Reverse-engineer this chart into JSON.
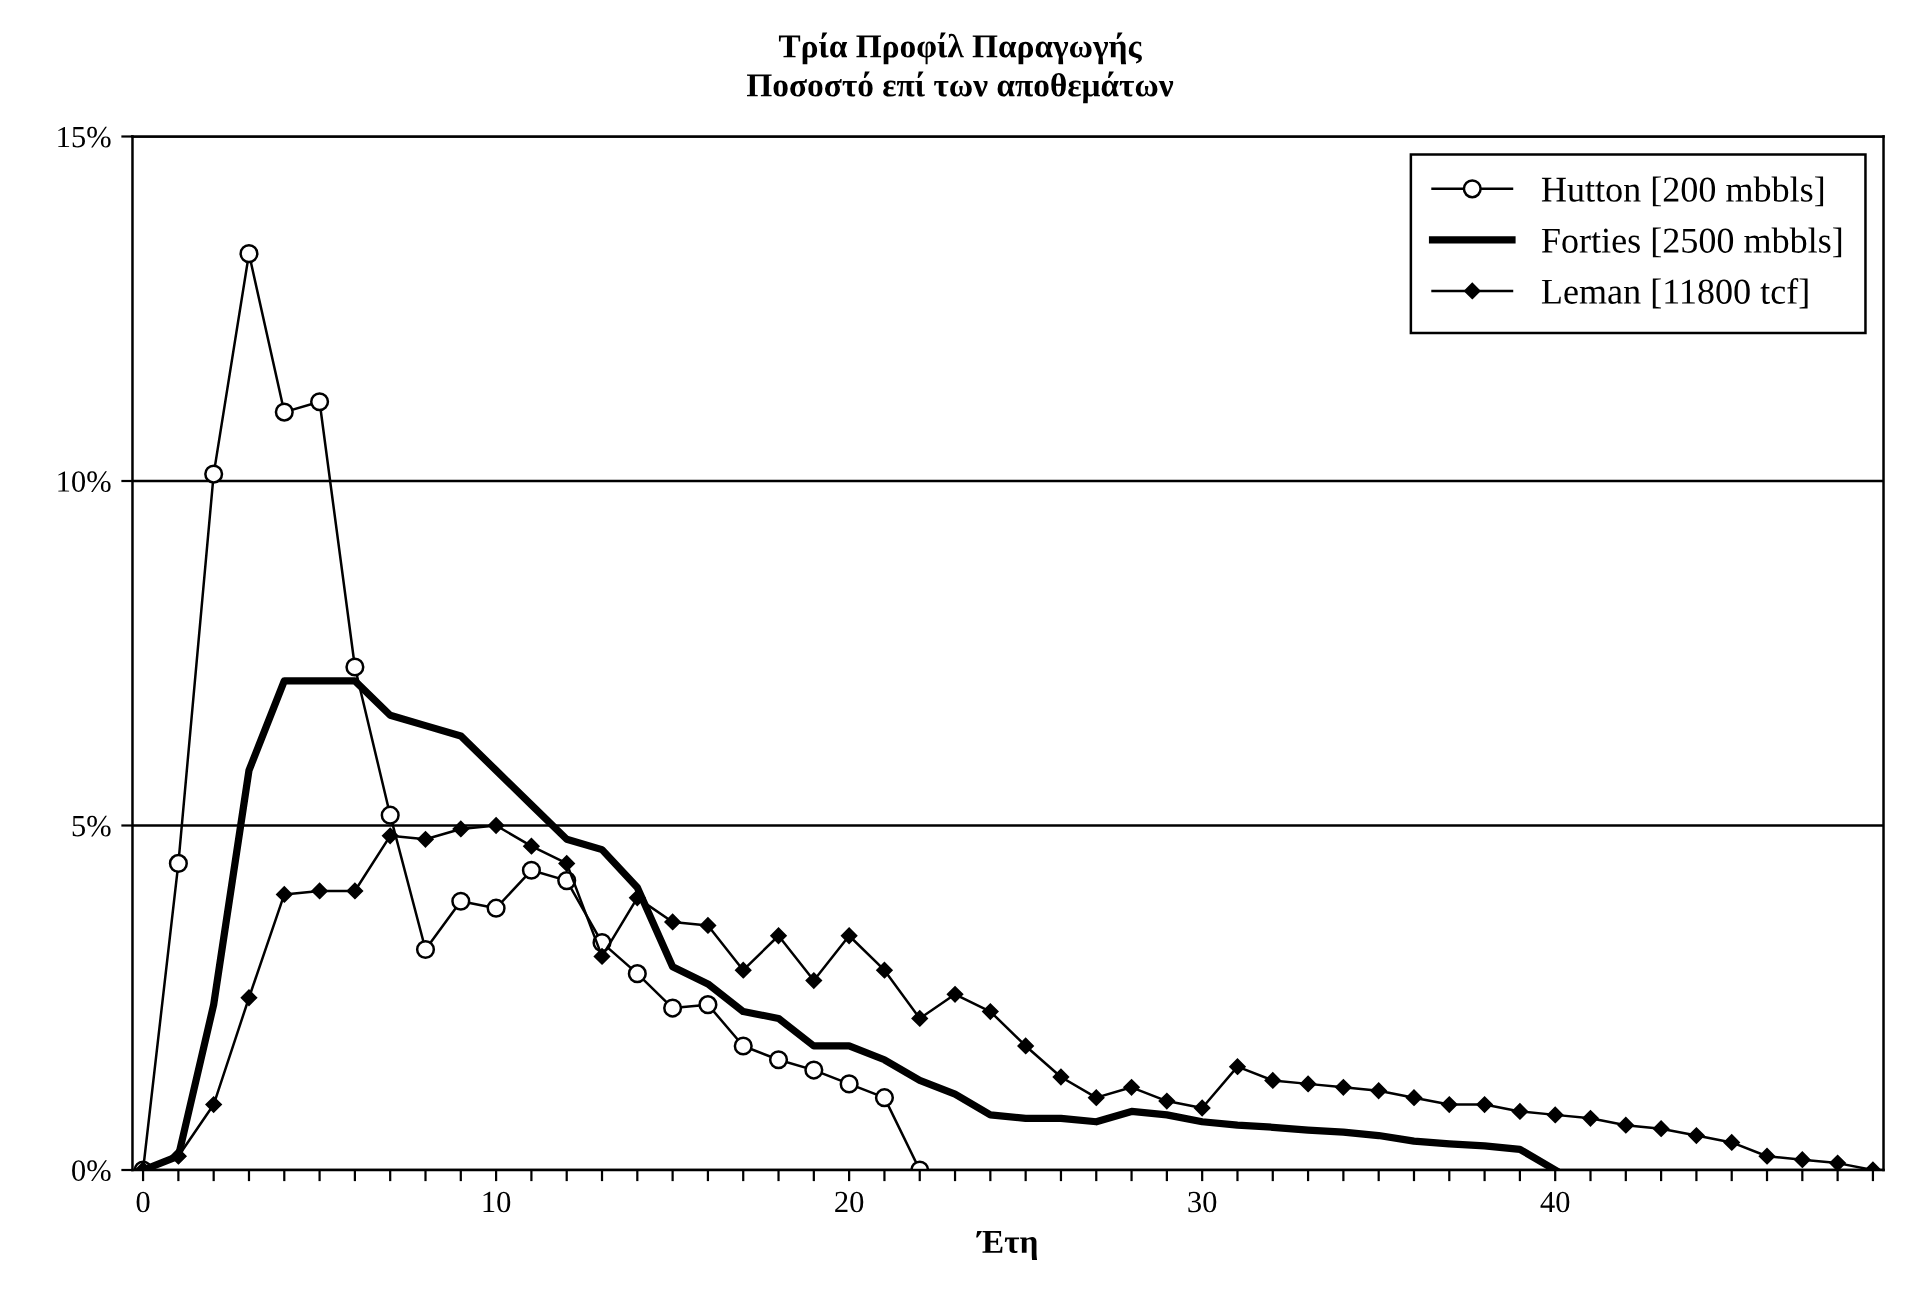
{
  "chart_data": {
    "type": "line",
    "title": "Τρία Προφίλ Παραγωγής",
    "subtitle": "Ποσοστό επί των αποθεμάτων",
    "xlabel": "Έτη",
    "series": [
      {
        "name": "Hutton [200 mbbls]",
        "color": "#000000",
        "marker": "circle",
        "x": [
          0,
          1,
          2,
          3,
          4,
          5,
          6,
          7,
          8,
          9,
          10,
          11,
          12,
          13,
          14,
          15,
          16,
          17,
          18,
          19,
          20,
          21,
          22
        ],
        "values": [
          0,
          4.45,
          10.1,
          13.3,
          11.0,
          11.15,
          7.3,
          5.15,
          3.2,
          3.9,
          3.8,
          4.35,
          4.2,
          3.3,
          2.85,
          2.35,
          2.4,
          1.8,
          1.6,
          1.45,
          1.25,
          1.05,
          0
        ]
      },
      {
        "name": "Forties [2500 mbbls]",
        "color": "#000000",
        "marker": "none",
        "x": [
          0,
          1,
          2,
          3,
          4,
          5,
          6,
          7,
          8,
          9,
          10,
          11,
          12,
          13,
          14,
          15,
          16,
          17,
          18,
          19,
          20,
          21,
          22,
          23,
          24,
          25,
          26,
          27,
          28,
          29,
          30,
          31,
          32,
          33,
          34,
          35,
          36,
          37,
          38,
          39,
          40
        ],
        "values": [
          0,
          0.2,
          2.4,
          5.8,
          7.1,
          7.1,
          7.1,
          6.6,
          6.45,
          6.3,
          5.8,
          5.3,
          4.8,
          4.65,
          4.1,
          2.95,
          2.7,
          2.3,
          2.2,
          1.8,
          1.8,
          1.6,
          1.3,
          1.1,
          0.8,
          0.75,
          0.75,
          0.7,
          0.85,
          0.8,
          0.7,
          0.65,
          0.62,
          0.58,
          0.55,
          0.5,
          0.42,
          0.38,
          0.35,
          0.3,
          0
        ]
      },
      {
        "name": "Leman [11800 tcf]",
        "color": "#000000",
        "marker": "diamond",
        "x": [
          0,
          1,
          2,
          3,
          4,
          5,
          6,
          7,
          8,
          9,
          10,
          11,
          12,
          13,
          14,
          15,
          16,
          17,
          18,
          19,
          20,
          21,
          22,
          23,
          24,
          25,
          26,
          27,
          28,
          29,
          30,
          31,
          32,
          33,
          34,
          35,
          36,
          37,
          38,
          39,
          40,
          41,
          42,
          43,
          44,
          45,
          46,
          47,
          48,
          49
        ],
        "values": [
          0,
          0.2,
          0.95,
          2.5,
          4.0,
          4.05,
          4.05,
          4.85,
          4.8,
          4.95,
          5.0,
          4.7,
          4.45,
          3.1,
          3.95,
          3.6,
          3.55,
          2.9,
          3.4,
          2.75,
          3.4,
          2.9,
          2.2,
          2.55,
          2.3,
          1.8,
          1.35,
          1.05,
          1.2,
          1.0,
          0.9,
          1.5,
          1.3,
          1.25,
          1.2,
          1.15,
          1.05,
          0.95,
          0.95,
          0.85,
          0.8,
          0.75,
          0.65,
          0.6,
          0.5,
          0.4,
          0.2,
          0.15,
          0.1,
          0
        ]
      }
    ],
    "xlim": [
      -0.3,
      49.3
    ],
    "xticks": [
      0,
      {
        "value": 1,
        "label": null
      },
      {
        "value": 2,
        "label": null
      },
      {
        "value": 3,
        "label": null
      },
      {
        "value": 4,
        "label": null
      },
      {
        "value": 5,
        "label": null
      },
      {
        "value": 6,
        "label": null
      },
      {
        "value": 7,
        "label": null
      },
      {
        "value": 8,
        "label": null
      },
      {
        "value": 9,
        "label": null
      },
      10,
      {
        "value": 11,
        "label": null
      },
      {
        "value": 12,
        "label": null
      },
      {
        "value": 13,
        "label": null
      },
      {
        "value": 14,
        "label": null
      },
      {
        "value": 15,
        "label": null
      },
      {
        "value": 16,
        "label": null
      },
      {
        "value": 17,
        "label": null
      },
      {
        "value": 18,
        "label": null
      },
      {
        "value": 19,
        "label": null
      },
      20,
      {
        "value": 21,
        "label": null
      },
      {
        "value": 22,
        "label": null
      },
      {
        "value": 23,
        "label": null
      },
      {
        "value": 24,
        "label": null
      },
      {
        "value": 25,
        "label": null
      },
      {
        "value": 26,
        "label": null
      },
      {
        "value": 27,
        "label": null
      },
      {
        "value": 28,
        "label": null
      },
      {
        "value": 29,
        "label": null
      },
      30,
      {
        "value": 31,
        "label": null
      },
      {
        "value": 32,
        "label": null
      },
      {
        "value": 33,
        "label": null
      },
      {
        "value": 34,
        "label": null
      },
      {
        "value": 35,
        "label": null
      },
      {
        "value": 36,
        "label": null
      },
      {
        "value": 37,
        "label": null
      },
      {
        "value": 38,
        "label": null
      },
      {
        "value": 39,
        "label": null
      },
      40,
      {
        "value": 41,
        "label": null
      },
      {
        "value": 42,
        "label": null
      },
      {
        "value": 43,
        "label": null
      },
      {
        "value": 44,
        "label": null
      },
      {
        "value": 45,
        "label": null
      },
      {
        "value": 46,
        "label": null
      },
      {
        "value": 47,
        "label": null
      },
      {
        "value": 48,
        "label": null
      },
      {
        "value": 49,
        "label": null
      }
    ],
    "ylim": [
      0,
      15
    ],
    "yticks": [
      {
        "value": 0,
        "label": "0%"
      },
      {
        "value": 5,
        "label": "5%"
      },
      {
        "value": 10,
        "label": "10%"
      },
      {
        "value": 15,
        "label": "15%"
      }
    ],
    "grid": "y",
    "legend": "top right",
    "line_style": "solid"
  }
}
